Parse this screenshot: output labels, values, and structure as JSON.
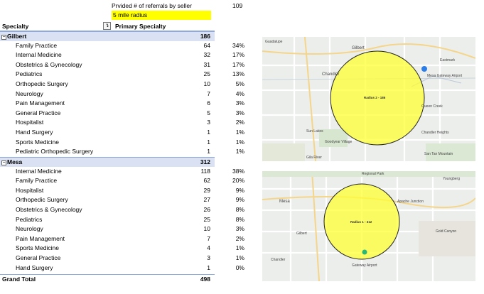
{
  "header": {
    "note": "Prvided # of referrals by seller",
    "count": "109",
    "radius_label": "5 mile radius"
  },
  "pivot": {
    "col_specialty": "Specialty",
    "col_primary": "Primary Specialty",
    "filter_icon": "filter-dropdown-icon",
    "groups": [
      {
        "name": "Gilbert",
        "total": "186",
        "rows": [
          {
            "label": "Family Practice",
            "value": "64",
            "pct": "34%"
          },
          {
            "label": "Internal Medicine",
            "value": "32",
            "pct": "17%"
          },
          {
            "label": "Obstetrics & Gynecology",
            "value": "31",
            "pct": "17%"
          },
          {
            "label": "Pediatrics",
            "value": "25",
            "pct": "13%"
          },
          {
            "label": "Orthopedic Surgery",
            "value": "10",
            "pct": "5%"
          },
          {
            "label": "Neurology",
            "value": "7",
            "pct": "4%"
          },
          {
            "label": "Pain Management",
            "value": "6",
            "pct": "3%"
          },
          {
            "label": "General Practice",
            "value": "5",
            "pct": "3%"
          },
          {
            "label": "Hospitalist",
            "value": "3",
            "pct": "2%"
          },
          {
            "label": "Hand Surgery",
            "value": "1",
            "pct": "1%"
          },
          {
            "label": "Sports Medicine",
            "value": "1",
            "pct": "1%"
          },
          {
            "label": "Pediatric Orthopedic Surgery",
            "value": "1",
            "pct": "1%"
          }
        ]
      },
      {
        "name": "Mesa",
        "total": "312",
        "rows": [
          {
            "label": "Internal Medicine",
            "value": "118",
            "pct": "38%"
          },
          {
            "label": "Family Practice",
            "value": "62",
            "pct": "20%"
          },
          {
            "label": "Hospitalist",
            "value": "29",
            "pct": "9%"
          },
          {
            "label": "Orthopedic Surgery",
            "value": "27",
            "pct": "9%"
          },
          {
            "label": "Obstetrics & Gynecology",
            "value": "26",
            "pct": "8%"
          },
          {
            "label": "Pediatrics",
            "value": "25",
            "pct": "8%"
          },
          {
            "label": "Neurology",
            "value": "10",
            "pct": "3%"
          },
          {
            "label": "Pain Management",
            "value": "7",
            "pct": "2%"
          },
          {
            "label": "Sports Medicine",
            "value": "4",
            "pct": "1%"
          },
          {
            "label": "General Practice",
            "value": "3",
            "pct": "1%"
          },
          {
            "label": "Hand Surgery",
            "value": "1",
            "pct": "0%"
          }
        ]
      }
    ],
    "grand_total_label": "Grand Total",
    "grand_total": "498"
  },
  "maps": {
    "gilbert": {
      "radius_text": "Radius 2 - 186",
      "places": [
        "Guadalupe",
        "Gilbert",
        "Chandler",
        "Mesa Gateway Airport",
        "Queen Creek",
        "Sun Lakes",
        "San Tan Mountain",
        "Chandler Heights",
        "Eastmark",
        "Gila River",
        "Goodyear Village"
      ]
    },
    "mesa": {
      "radius_text": "Radius 1 - 312",
      "places": [
        "Regional Park",
        "Mesa",
        "Gilbert",
        "Chandler",
        "Apache Junction",
        "Gold Canyon",
        "Gateway Airport",
        "Youngberg"
      ]
    }
  },
  "colors": {
    "highlight": "#ffff00",
    "group_band": "#d9e1f2",
    "pivot_border": "#8ea9db",
    "radius_fill": "#ffff33"
  }
}
